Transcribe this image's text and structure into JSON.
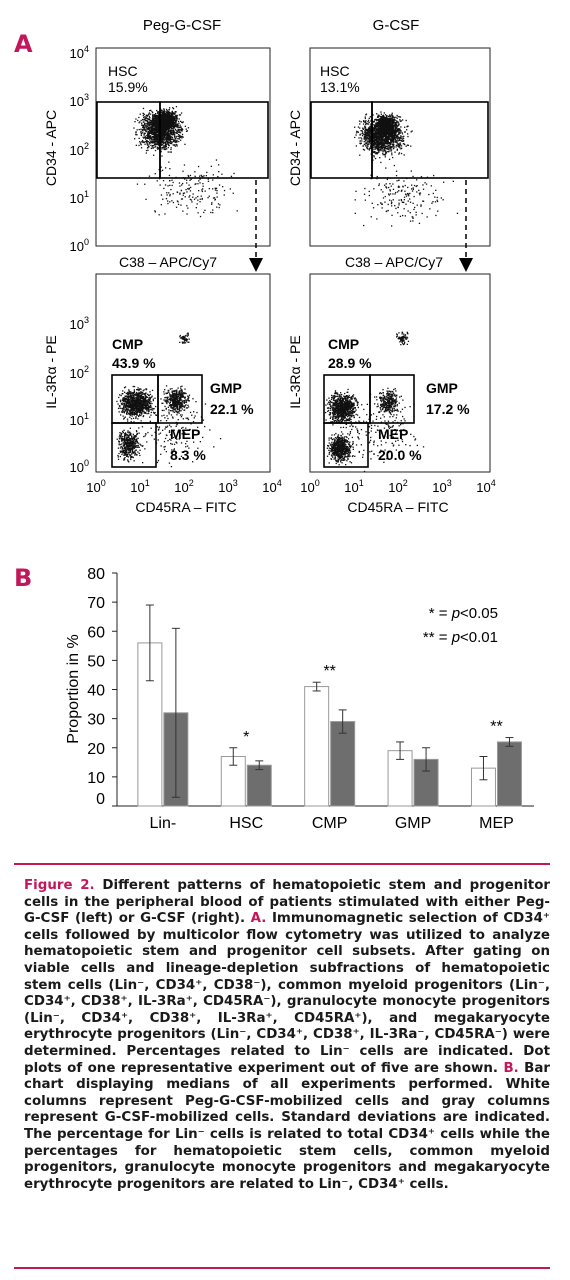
{
  "panel_a": {
    "letter": "A",
    "col_titles": [
      "Peg-G-CSF",
      "G-CSF"
    ],
    "top_plots": [
      {
        "gate_name": "HSC",
        "gate_value": "15.9%",
        "ylabel": "CD34 - APC",
        "xlabel": "C38 – APC/Cy7"
      },
      {
        "gate_name": "HSC",
        "gate_value": "13.1%",
        "ylabel": "CD34 - APC",
        "xlabel": "C38 – APC/Cy7"
      }
    ],
    "bottom_plots": [
      {
        "ylabel": "IL-3Rα - PE",
        "xlabel": "CD45RA – FITC",
        "cmp_name": "CMP",
        "cmp_value": "43.9 %",
        "gmp_name": "GMP",
        "gmp_value": "22.1 %",
        "mep_name": "MEP",
        "mep_value": "8.3 %"
      },
      {
        "ylabel": "IL-3Rα - PE",
        "xlabel": "CD45RA – FITC",
        "cmp_name": "CMP",
        "cmp_value": "28.9 %",
        "gmp_name": "GMP",
        "gmp_value": "17.2 %",
        "mep_name": "MEP",
        "mep_value": "20.0 %"
      }
    ],
    "log_ticks": [
      {
        "base": "10",
        "exp": "0"
      },
      {
        "base": "10",
        "exp": "1"
      },
      {
        "base": "10",
        "exp": "2"
      },
      {
        "base": "10",
        "exp": "3"
      },
      {
        "base": "10",
        "exp": "4"
      }
    ]
  },
  "panel_b": {
    "letter": "B",
    "legend_lines": [
      {
        "stars": "*",
        "eq": " = ",
        "p": "p",
        "rest": "<0.05"
      },
      {
        "stars": "**",
        "eq": " = ",
        "p": "p",
        "rest": "<0.01"
      }
    ]
  },
  "chart_data": {
    "type": "bar",
    "ylabel": "Proportion in %",
    "ylim": [
      0,
      80
    ],
    "yticks": [
      0,
      10,
      20,
      30,
      40,
      50,
      60,
      70,
      80
    ],
    "categories": [
      "Lin-",
      "HSC",
      "CMP",
      "GMP",
      "MEP"
    ],
    "series": [
      {
        "color": "#ffffff",
        "values": [
          56,
          17,
          41,
          19,
          13
        ],
        "errors": [
          13,
          3,
          1.5,
          3,
          4
        ]
      },
      {
        "color": "#6e6e6e",
        "values": [
          32,
          14,
          29,
          16,
          22
        ],
        "errors": [
          29,
          1.5,
          4,
          4,
          1.5
        ]
      }
    ],
    "significance": [
      "",
      "*",
      "**",
      "",
      "**"
    ]
  },
  "caption": {
    "title": "Figure 2.",
    "segments": [
      {
        "t": " Different patterns of hematopoietic stem and progenitor cells in the peripheral blood of patients stimulated with either Peg-G-CSF (left) or G-CSF (right). ",
        "c": ""
      },
      {
        "t": "A.",
        "c": "mag"
      },
      {
        "t": " Immunomagnetic selection of CD34⁺ cells followed by multicolor flow cytometry was utilized to analyze hematopoietic stem and progenitor cell subsets. After gating on viable cells and lineage-depletion subfractions of hematopoietic stem cells (Lin⁻, CD34⁺, CD38⁻), common myeloid progenitors (Lin⁻, CD34⁺, CD38⁺, IL-3Ra⁺, CD45RA⁻), granulocyte monocyte progenitors (Lin⁻, CD34⁺, CD38⁺, IL-3Ra⁺, CD45RA⁺), and megakaryocyte erythrocyte progenitors (Lin⁻, CD34⁺, CD38⁺, IL-3Ra⁻, CD45RA⁻) were determined. Percentages related to Lin⁻ cells are indicated. Dot plots of one representative experiment out of five are shown. ",
        "c": ""
      },
      {
        "t": "B.",
        "c": "mag"
      },
      {
        "t": " Bar chart displaying medians of all experiments performed. White columns represent Peg-G-CSF-mobilized cells and gray columns represent G-CSF-mobilized cells. Standard deviations are indicated. The percentage for Lin⁻ cells is related to total CD34⁺ cells while the percentages for hematopoietic stem cells, common myeloid progenitors, granulocyte monocyte progenitors and megakaryocyte erythrocyte progenitors are related to Lin⁻, CD34⁺ cells.",
        "c": ""
      }
    ]
  },
  "colors": {
    "accent": "#c2185b",
    "gray_bar": "#6e6e6e"
  }
}
